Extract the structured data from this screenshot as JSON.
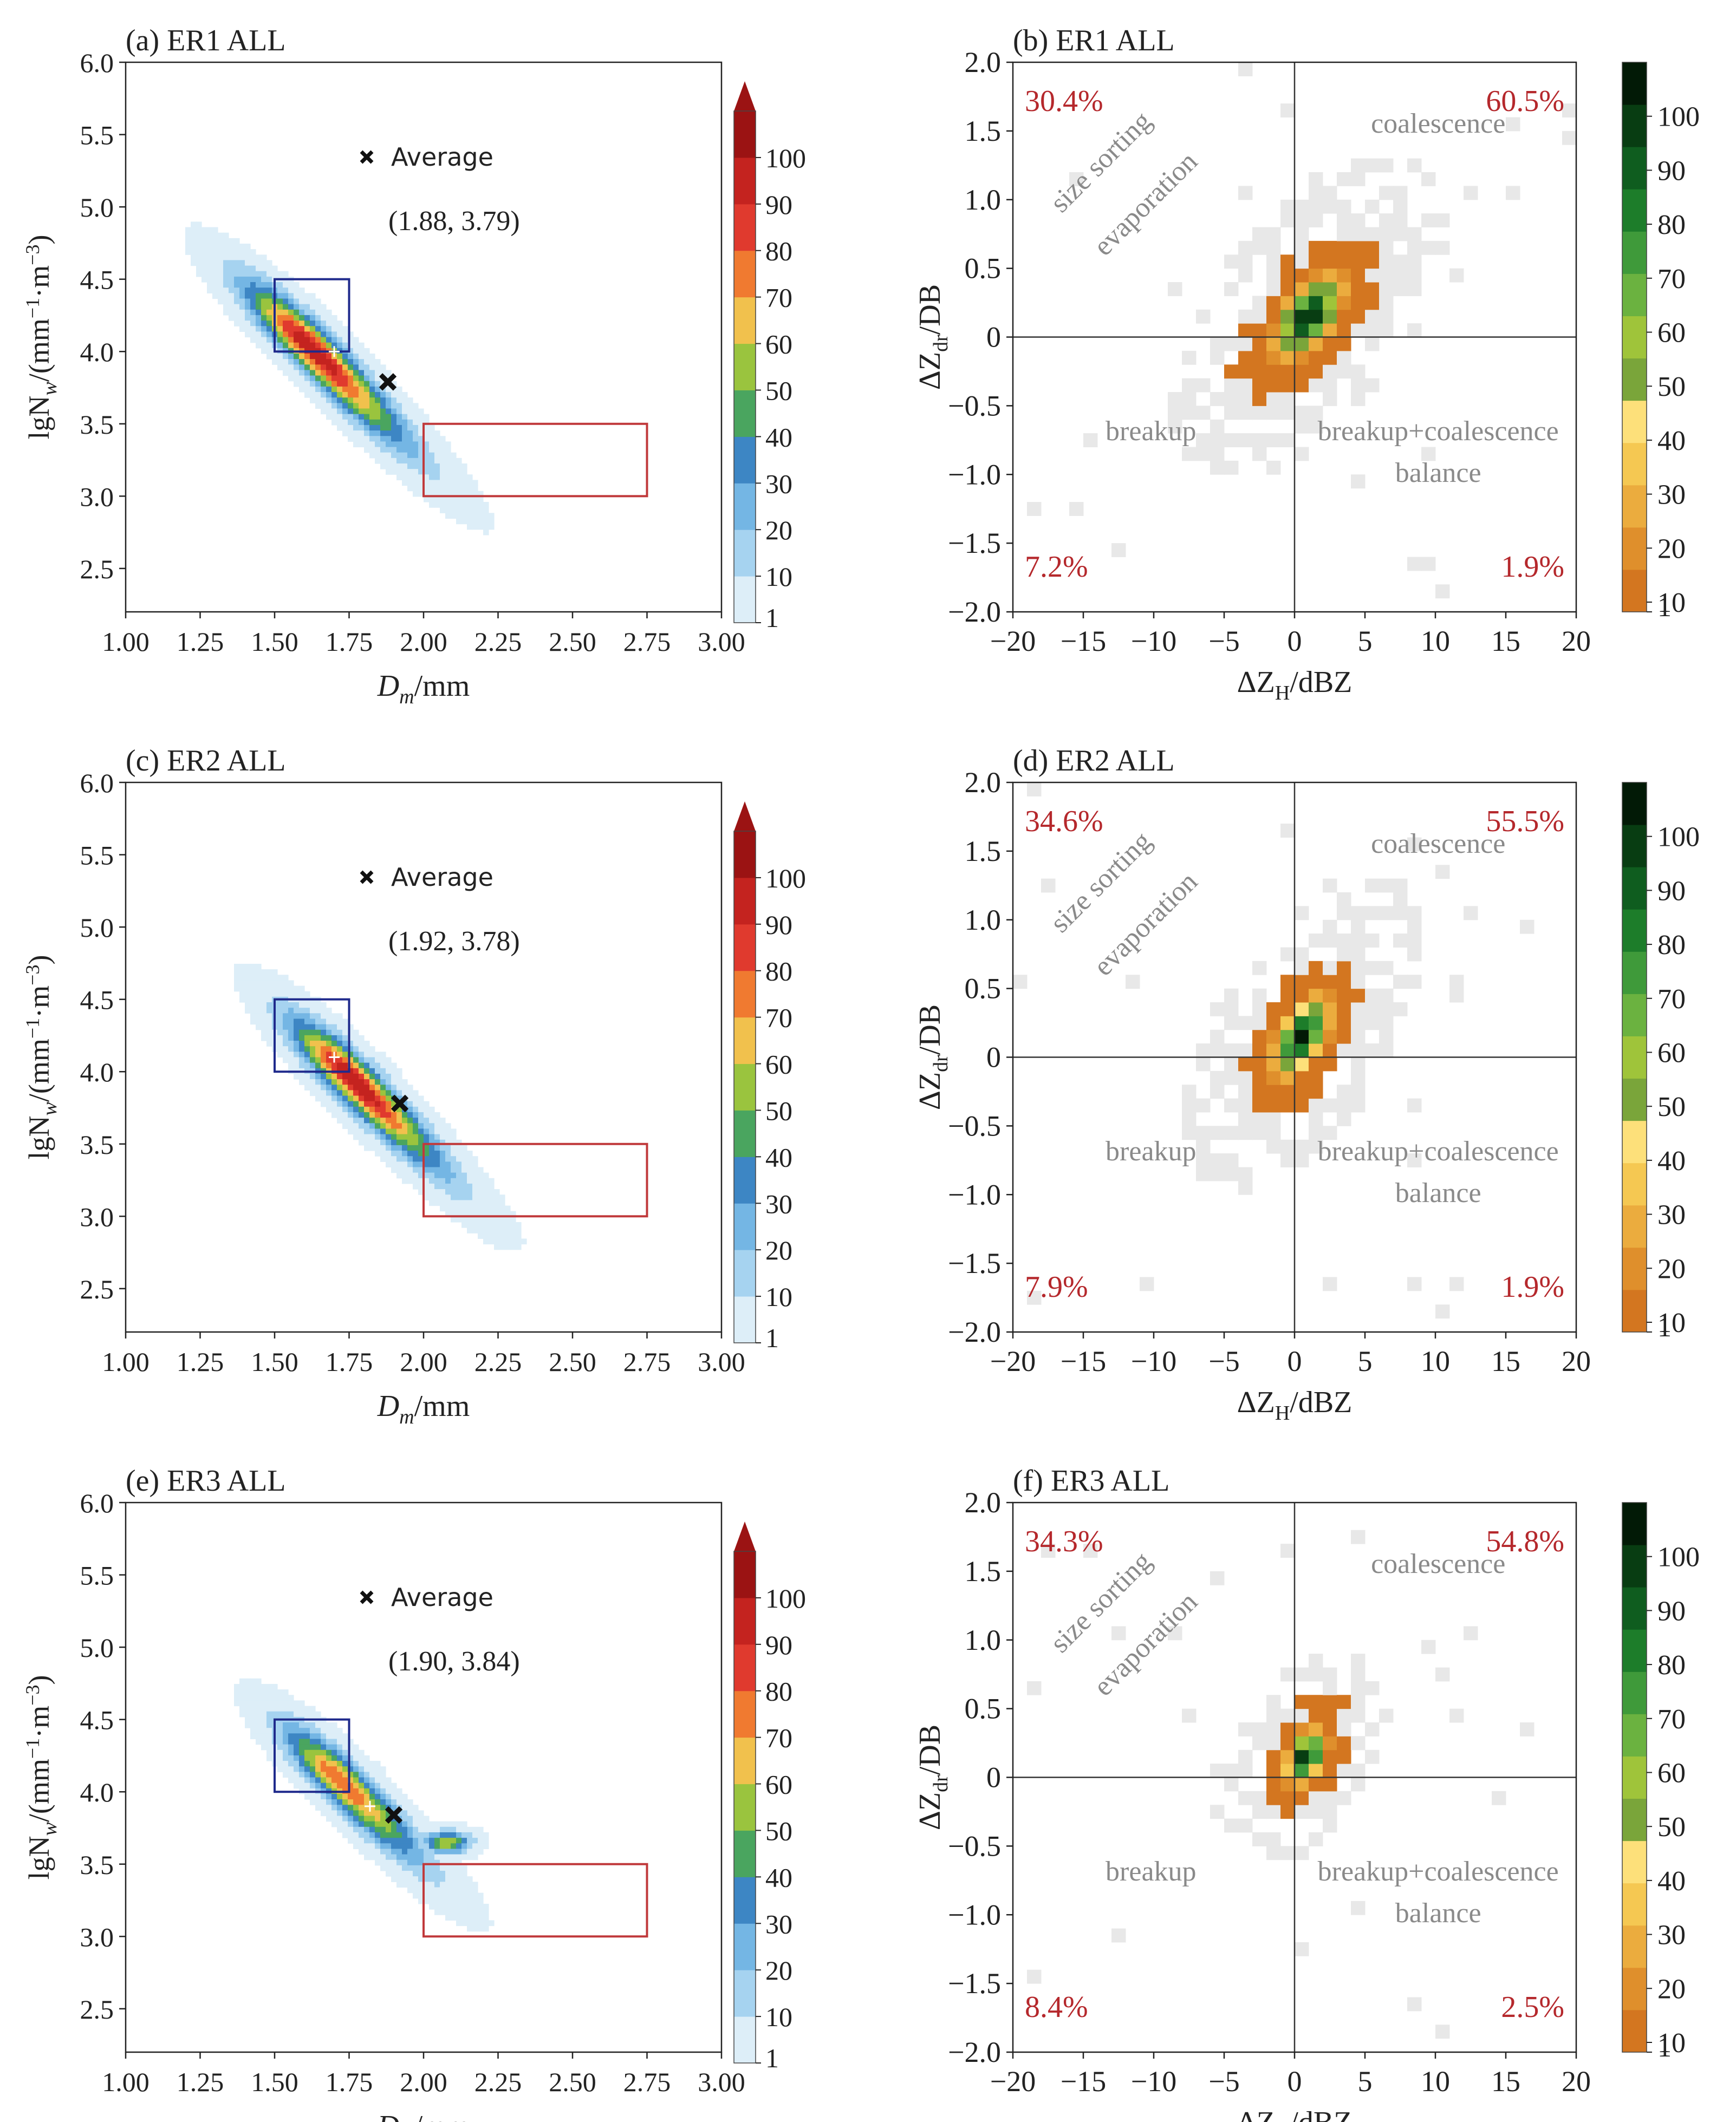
{
  "figure": {
    "left_panels": [
      {
        "panel": "a",
        "title": "(a) ER1 ALL",
        "average_label": "Average",
        "average_text": "(1.88, 3.79)"
      },
      {
        "panel": "c",
        "title": "(c) ER2 ALL",
        "average_label": "Average",
        "average_text": "(1.92, 3.78)"
      },
      {
        "panel": "e",
        "title": "(e) ER3 ALL",
        "average_label": "Average",
        "average_text": "(1.90, 3.84)"
      }
    ],
    "right_panels": [
      {
        "panel": "b",
        "title": "(b) ER1 ALL",
        "pct_tl": "30.4%",
        "pct_tr": "60.5%",
        "pct_bl": "7.2%",
        "pct_br": "1.9%"
      },
      {
        "panel": "d",
        "title": "(d) ER2 ALL",
        "pct_tl": "34.6%",
        "pct_tr": "55.5%",
        "pct_bl": "7.9%",
        "pct_br": "1.9%"
      },
      {
        "panel": "f",
        "title": "(f) ER3 ALL",
        "pct_tl": "34.3%",
        "pct_tr": "54.8%",
        "pct_bl": "8.4%",
        "pct_br": "2.5%"
      }
    ],
    "left_axes": {
      "xlabel_main": "D",
      "xlabel_sub": "m",
      "xlabel_unit": "/mm",
      "ylabel_main": "lgN",
      "ylabel_sub": "w",
      "ylabel_unit": "/(mm",
      "ylabel_sup1": "−1",
      "ylabel_mid": "·m",
      "ylabel_sup2": "−3",
      "ylabel_end": ")",
      "xticks": [
        "1.00",
        "1.25",
        "1.50",
        "1.75",
        "2.00",
        "2.25",
        "2.50",
        "2.75",
        "3.00"
      ],
      "yticks": [
        "2.5",
        "3.0",
        "3.5",
        "4.0",
        "4.5",
        "5.0",
        "5.5",
        "6.0"
      ]
    },
    "right_axes": {
      "xlabel_main": "ΔZ",
      "xlabel_sub": "H",
      "xlabel_unit": "/dBZ",
      "ylabel_main": "ΔZ",
      "ylabel_sub": "dr",
      "ylabel_unit": "/DB",
      "xticks": [
        "−20",
        "−15",
        "−10",
        "−5",
        "0",
        "5",
        "10",
        "15",
        "20"
      ],
      "yticks": [
        "−2.0",
        "−1.5",
        "−1.0",
        "−0.5",
        "0",
        "0.5",
        "1.0",
        "1.5",
        "2.0"
      ]
    },
    "quadrant_labels": {
      "size_sorting": "size sorting",
      "evaporation": "evaporation",
      "coalescence": "coalescence",
      "breakup": "breakup",
      "breakup_coalescence": "breakup+coalescence",
      "balance": "balance"
    },
    "colorbar_ticks": [
      "1",
      "10",
      "20",
      "30",
      "40",
      "50",
      "60",
      "70",
      "80",
      "90",
      "100"
    ]
  },
  "colors": {
    "contour_levels": [
      "#ddeef8",
      "#a6d3f0",
      "#74b6e4",
      "#3d86c4",
      "#4aa55f",
      "#9ac43e",
      "#f1c14d",
      "#f07a30",
      "#e03a2e",
      "#c4231f",
      "#9b1313"
    ],
    "hist_levels": [
      "#d37620",
      "#df8f2c",
      "#ebac3e",
      "#f5c852",
      "#fde07a",
      "#7aa53a",
      "#9fc43a",
      "#6bb240",
      "#3f9a3a",
      "#1d7d2a",
      "#0f5d1f",
      "#083d12",
      "#021a06"
    ],
    "blue_box": "#1f2a8c",
    "red_box": "#c0393b",
    "pct_text": "#b5282c",
    "label_text": "#8a8a8a",
    "light_gray_cell": "#e8e8e8"
  },
  "chart_data": [
    {
      "panel": "a",
      "type": "heatmap",
      "title": "(a) ER1 ALL",
      "xlabel": "Dm/mm",
      "ylabel": "lgNw/(mm^-1·m^-3)",
      "xlim": [
        1.0,
        3.0
      ],
      "ylim": [
        2.2,
        6.0
      ],
      "average": [
        1.88,
        3.79
      ],
      "peak": [
        1.62,
        4.03
      ],
      "mode_marker": [
        1.7,
        4.0
      ],
      "width": 0.31,
      "scale": 1.0,
      "secondary": null,
      "boxes": [
        {
          "color": "blue",
          "x": [
            1.5,
            1.75
          ],
          "y": [
            4.0,
            4.5
          ]
        },
        {
          "color": "red",
          "x": [
            2.0,
            2.75
          ],
          "y": [
            3.0,
            3.5
          ]
        }
      ],
      "colorbar": {
        "levels": [
          1,
          10,
          20,
          30,
          40,
          50,
          60,
          70,
          80,
          90,
          100
        ],
        "extend": "max"
      }
    },
    {
      "panel": "c",
      "type": "heatmap",
      "title": "(c) ER2 ALL",
      "xlabel": "Dm/mm",
      "ylabel": "lgNw/(mm^-1·m^-3)",
      "xlim": [
        1.0,
        3.0
      ],
      "ylim": [
        2.2,
        6.0
      ],
      "average": [
        1.92,
        3.78
      ],
      "peak": [
        1.76,
        3.95
      ],
      "mode_marker": [
        1.7,
        4.1
      ],
      "width": 0.29,
      "scale": 1.0,
      "secondary": null,
      "boxes": [
        {
          "color": "blue",
          "x": [
            1.5,
            1.75
          ],
          "y": [
            4.0,
            4.5
          ]
        },
        {
          "color": "red",
          "x": [
            2.0,
            2.75
          ],
          "y": [
            3.0,
            3.5
          ]
        }
      ],
      "colorbar": {
        "levels": [
          1,
          10,
          20,
          30,
          40,
          50,
          60,
          70,
          80,
          90,
          100
        ],
        "extend": "max"
      }
    },
    {
      "panel": "e",
      "type": "heatmap",
      "title": "(e) ER3 ALL",
      "xlabel": "Dm/mm",
      "ylabel": "lgNw/(mm^-1·m^-3)",
      "xlim": [
        1.0,
        3.0
      ],
      "ylim": [
        2.2,
        6.0
      ],
      "average": [
        1.9,
        3.84
      ],
      "peak": [
        1.72,
        4.08
      ],
      "mode_marker": [
        1.82,
        3.9
      ],
      "width": 0.26,
      "scale": 0.8,
      "secondary": [
        2.08,
        3.65
      ],
      "boxes": [
        {
          "color": "blue",
          "x": [
            1.5,
            1.75
          ],
          "y": [
            4.0,
            4.5
          ]
        },
        {
          "color": "red",
          "x": [
            2.0,
            2.75
          ],
          "y": [
            3.0,
            3.5
          ]
        }
      ],
      "colorbar": {
        "levels": [
          1,
          10,
          20,
          30,
          40,
          50,
          60,
          70,
          80,
          90,
          100
        ],
        "extend": "max"
      }
    },
    {
      "panel": "b",
      "type": "heatmap",
      "title": "(b) ER1 ALL",
      "xlabel": "ΔZH/dBZ",
      "ylabel": "ΔZdr/DB",
      "xlim": [
        -20,
        20
      ],
      "ylim": [
        -2.0,
        2.0
      ],
      "center": [
        1.0,
        0.15
      ],
      "peak_value": 100,
      "spread": [
        4.2,
        0.42
      ],
      "tilt": 0.07,
      "threshold": 0.05,
      "quadrant_percent": {
        "top_left": 30.4,
        "top_right": 60.5,
        "bottom_left": 7.2,
        "bottom_right": 1.9
      },
      "colorbar": {
        "levels": [
          1,
          10,
          20,
          30,
          40,
          50,
          60,
          70,
          80,
          90,
          100
        ]
      }
    },
    {
      "panel": "d",
      "type": "heatmap",
      "title": "(d) ER2 ALL",
      "xlabel": "ΔZH/dBZ",
      "ylabel": "ΔZdr/DB",
      "xlim": [
        -20,
        20
      ],
      "ylim": [
        -2.0,
        2.0
      ],
      "center": [
        0.5,
        0.15
      ],
      "peak_value": 100,
      "spread": [
        3.6,
        0.42
      ],
      "tilt": 0.08,
      "threshold": 0.05,
      "quadrant_percent": {
        "top_left": 34.6,
        "top_right": 55.5,
        "bottom_left": 7.9,
        "bottom_right": 1.9
      },
      "colorbar": {
        "levels": [
          1,
          10,
          20,
          30,
          40,
          50,
          60,
          70,
          80,
          90,
          100
        ]
      }
    },
    {
      "panel": "f",
      "type": "heatmap",
      "title": "(f) ER3 ALL",
      "xlabel": "ΔZH/dBZ",
      "ylabel": "ΔZdr/DB",
      "xlim": [
        -20,
        20
      ],
      "ylim": [
        -2.0,
        2.0
      ],
      "center": [
        0.8,
        0.15
      ],
      "peak_value": 100,
      "spread": [
        2.6,
        0.32
      ],
      "tilt": 0.06,
      "threshold": 0.07,
      "quadrant_percent": {
        "top_left": 34.3,
        "top_right": 54.8,
        "bottom_left": 8.4,
        "bottom_right": 2.5
      },
      "colorbar": {
        "levels": [
          1,
          10,
          20,
          30,
          40,
          50,
          60,
          70,
          80,
          90,
          100
        ]
      }
    }
  ]
}
